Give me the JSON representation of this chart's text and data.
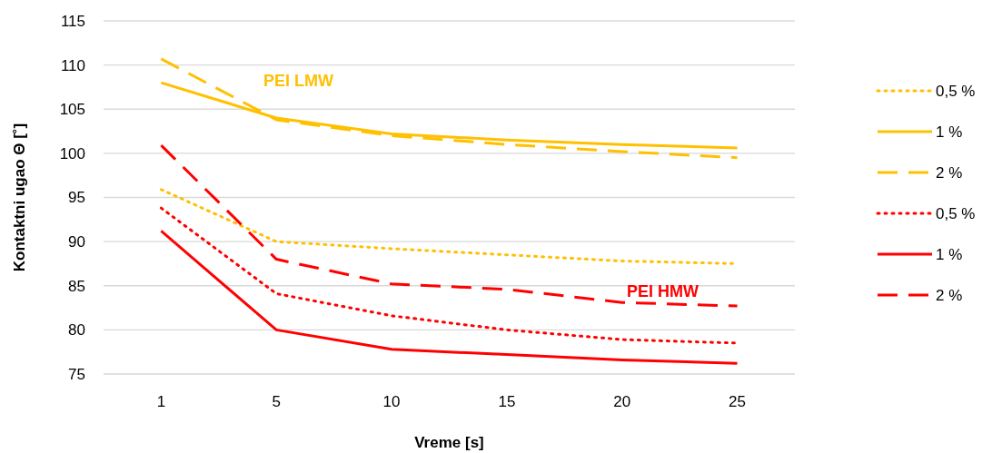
{
  "chart_data": {
    "type": "line",
    "xlabel": "Vreme [s]",
    "ylabel": "Kontaktni ugao Θ [˚]",
    "categories": [
      "1",
      "5",
      "10",
      "15",
      "20",
      "25"
    ],
    "series": [
      {
        "name": "0,5 %",
        "color": "#ffc000",
        "line_style": "dotted",
        "values": [
          95.9,
          90,
          89.2,
          88.5,
          87.8,
          87.5
        ]
      },
      {
        "name": "1 %",
        "color": "#ffc000",
        "line_style": "solid",
        "values": [
          108,
          104,
          102.2,
          101.5,
          101,
          100.6
        ]
      },
      {
        "name": "2 %",
        "color": "#ffc000",
        "line_style": "dashed",
        "values": [
          110.7,
          103.8,
          102,
          101,
          100.2,
          99.5
        ]
      },
      {
        "name": "0,5 %",
        "color": "#ff0000",
        "line_style": "dotted",
        "values": [
          93.8,
          84.1,
          81.6,
          80,
          78.9,
          78.5
        ]
      },
      {
        "name": "1 %",
        "color": "#ff0000",
        "line_style": "solid",
        "values": [
          91.2,
          80,
          77.8,
          77.2,
          76.6,
          76.2
        ]
      },
      {
        "name": "2 %",
        "color": "#ff0000",
        "line_style": "dashed",
        "values": [
          100.9,
          88,
          85.2,
          84.6,
          83.1,
          82.7
        ]
      }
    ],
    "annotations": [
      "PEI LMW",
      "PEI HMW"
    ],
    "ylim": [
      75,
      115
    ],
    "yticks": [
      75,
      80,
      85,
      90,
      95,
      100,
      105,
      110,
      115
    ],
    "grid": "y",
    "legend": "right",
    "marker": "none"
  }
}
